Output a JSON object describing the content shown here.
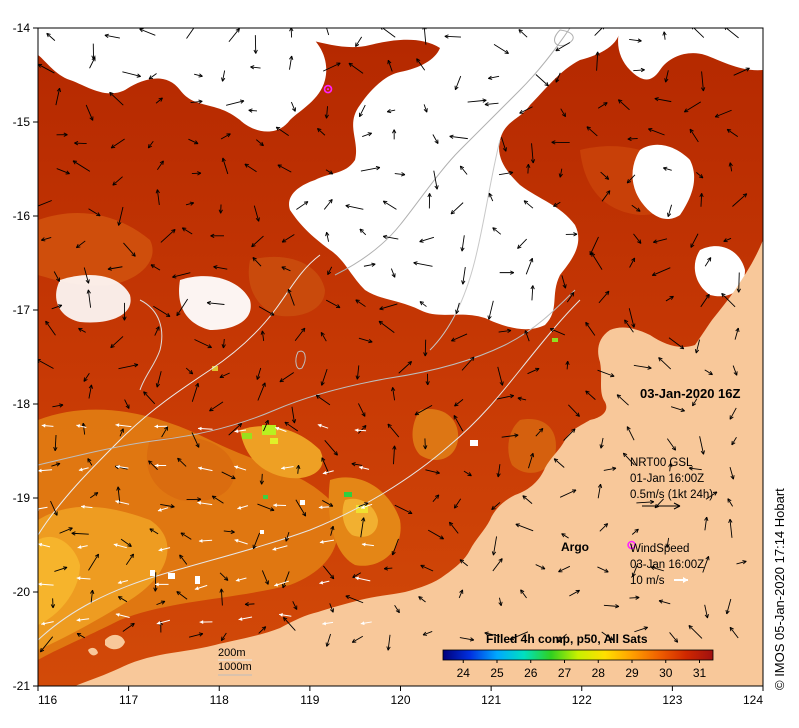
{
  "map": {
    "lon_ticks": [
      "116",
      "117",
      "118",
      "119",
      "120",
      "121",
      "122",
      "123",
      "124"
    ],
    "lat_ticks": [
      "-14",
      "-15",
      "-16",
      "-17",
      "-18",
      "-19",
      "-20",
      "-21"
    ],
    "lon_range": [
      116,
      124
    ],
    "lat_range": [
      -21,
      -14
    ],
    "colors": {
      "land": "#f8c89a",
      "sst_warm": "#b72400",
      "sst_mid": "#d85a0a",
      "sst_cool": "#ee9620",
      "bathymetry_line": "#c8c8c8",
      "argo_marker": "#ff22ff",
      "wind_arrow_white": "#ffffff"
    }
  },
  "date_label": "03-Jan-2020 16Z",
  "current_legend": {
    "line1": "NRT00 GSL",
    "line2": "01-Jan 16:00Z",
    "line3": "0.5m/s (1kt 24h)"
  },
  "argo": {
    "label": "Argo",
    "lon": 122.55,
    "lat": -19.5
  },
  "argo_float_2": {
    "lon": 119.2,
    "lat": -14.65
  },
  "wind_legend": {
    "line1": "WindSpeed",
    "line2": "03-Jan 16:00Z",
    "line3": "10 m/s"
  },
  "bathymetry_legend": {
    "contour1": "200m",
    "contour2": "1000m"
  },
  "colorbar": {
    "title": "Filled 4h comp, p50, All Sats",
    "ticks": [
      "24",
      "25",
      "26",
      "27",
      "28",
      "29",
      "30",
      "31"
    ],
    "stops": [
      "#00007a",
      "#0030e0",
      "#00a8ff",
      "#00e0c0",
      "#30d020",
      "#c8f000",
      "#ffe000",
      "#ffa000",
      "#f06000",
      "#d02800",
      "#a01010"
    ]
  },
  "credit": "© IMOS 05-Jan-2020 17:14 Hobart"
}
